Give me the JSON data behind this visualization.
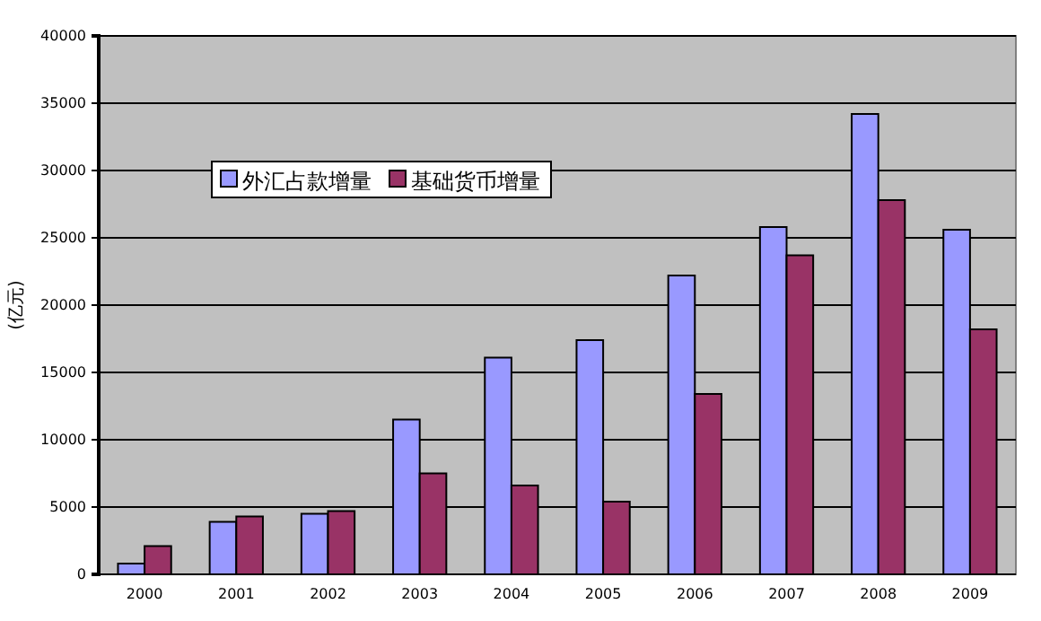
{
  "chart_data": {
    "type": "bar",
    "ylabel": "(亿元)",
    "categories": [
      "2000",
      "2001",
      "2002",
      "2003",
      "2004",
      "2005",
      "2006",
      "2007",
      "2008",
      "2009"
    ],
    "series": [
      {
        "name": "外汇占款增量",
        "color": "#9999ff",
        "values": [
          800,
          3900,
          4500,
          11500,
          16100,
          17400,
          22200,
          25800,
          34200,
          25600
        ]
      },
      {
        "name": "基础货币增量",
        "color": "#993366",
        "values": [
          2100,
          4300,
          4700,
          7500,
          6600,
          5400,
          13400,
          23700,
          27800,
          18200
        ]
      }
    ],
    "ylim": [
      0,
      40000
    ],
    "yticks": [
      0,
      5000,
      10000,
      15000,
      20000,
      25000,
      30000,
      35000,
      40000
    ],
    "grid": "y",
    "legend": "top left"
  }
}
